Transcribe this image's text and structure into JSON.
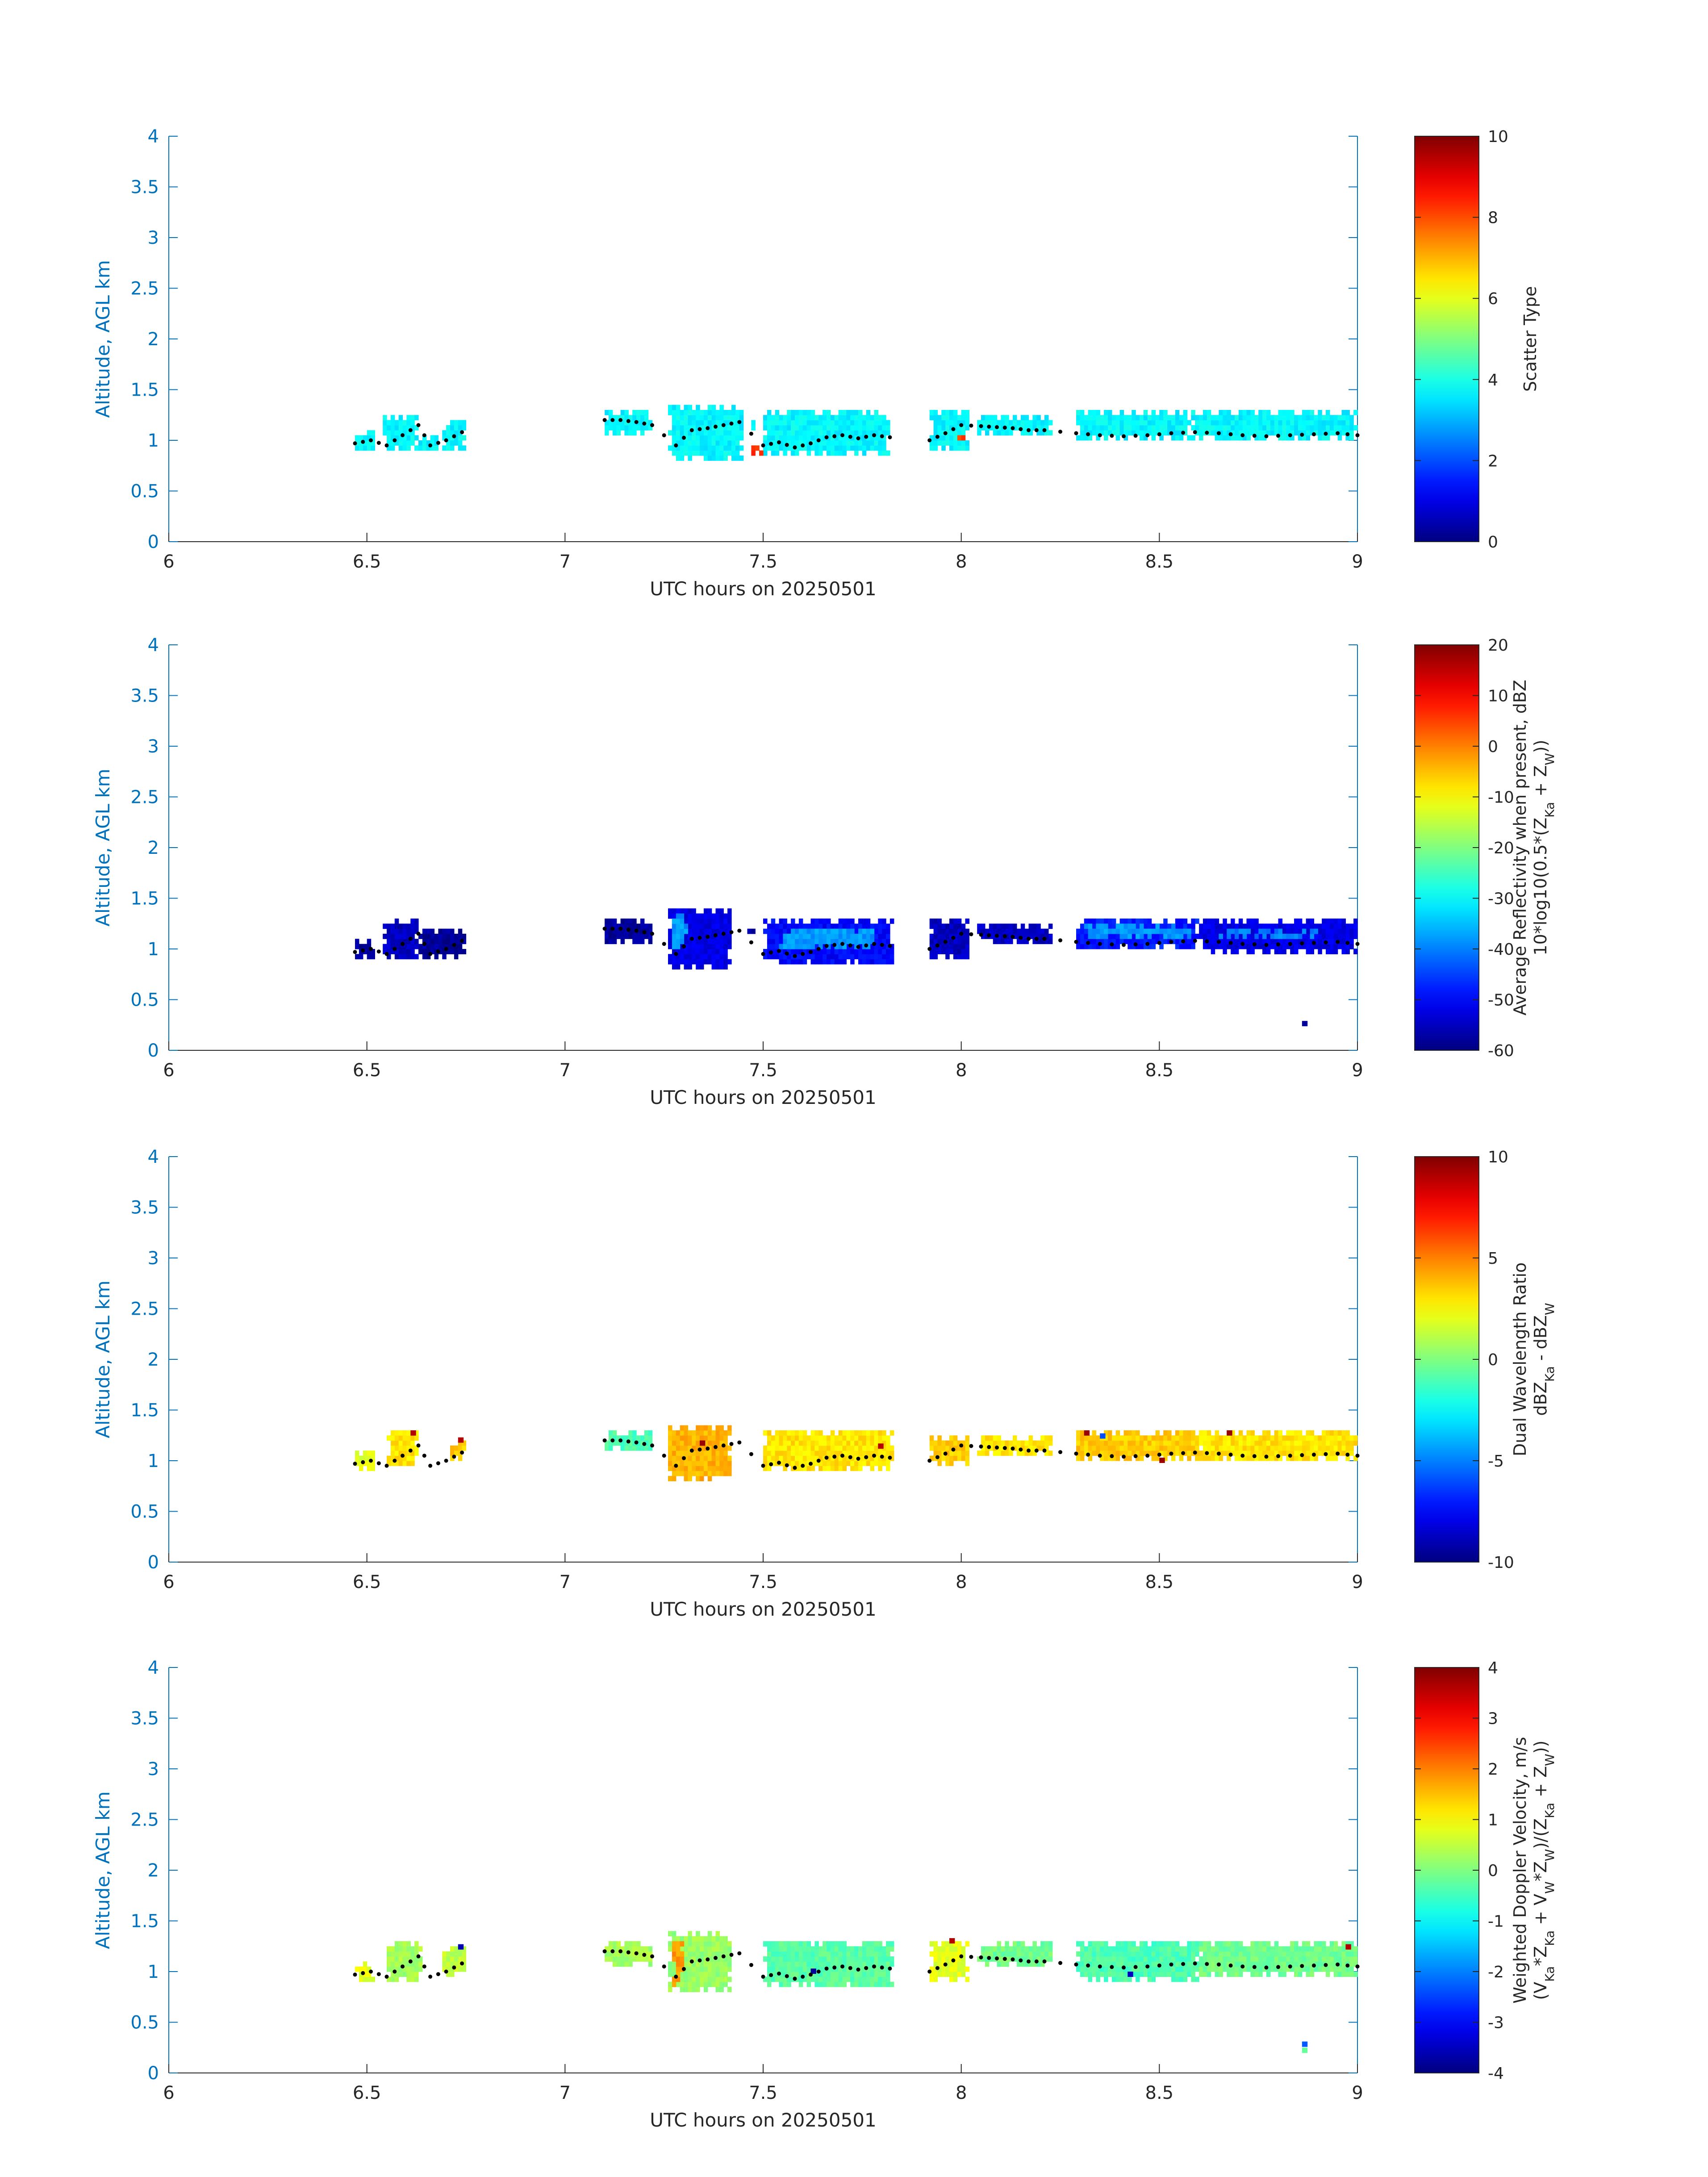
{
  "figure": {
    "date": "20250501"
  },
  "chart_data": [
    {
      "type": "heatmap",
      "xlabel": "UTC hours on 20250501",
      "ylabel": "Altitude, AGL km",
      "xlim": [
        6,
        9
      ],
      "ylim": [
        0,
        4
      ],
      "xticks": [
        "6",
        "6.5",
        "7",
        "7.5",
        "8",
        "8.5",
        "9"
      ],
      "yticks": [
        "0",
        "0.5",
        "1",
        "1.5",
        "2",
        "2.5",
        "3",
        "3.5",
        "4"
      ],
      "colorbar": {
        "label_lines": [
          "Scatter Type"
        ],
        "clim": [
          0,
          10
        ],
        "ticks": [
          "0",
          "2",
          "4",
          "6",
          "8",
          "10"
        ]
      },
      "colormap": "jet",
      "regions": [
        {
          "x": [
            6.47,
            6.52
          ],
          "y": [
            0.92,
            1.12
          ],
          "value": 3.7
        },
        {
          "x": [
            6.54,
            6.63
          ],
          "y": [
            0.92,
            1.25
          ],
          "value": 3.7
        },
        {
          "x": [
            6.63,
            6.68
          ],
          "y": [
            0.92,
            1.05
          ],
          "value": 3.7
        },
        {
          "x": [
            6.69,
            6.75
          ],
          "y": [
            0.92,
            1.2
          ],
          "value": 3.7
        },
        {
          "x": [
            7.1,
            7.22
          ],
          "y": [
            1.05,
            1.28
          ],
          "value": 3.7
        },
        {
          "x": [
            7.26,
            7.45
          ],
          "y": [
            0.82,
            1.35
          ],
          "value": 3.7
        },
        {
          "x": [
            7.46,
            7.48
          ],
          "y": [
            1.1,
            1.2
          ],
          "value": 3.7
        },
        {
          "x": [
            7.5,
            7.82
          ],
          "y": [
            0.85,
            1.28
          ],
          "value": 3.7
        },
        {
          "x": [
            7.47,
            7.5
          ],
          "y": [
            0.86,
            0.96
          ],
          "value": 8.2
        },
        {
          "x": [
            7.92,
            8.02
          ],
          "y": [
            0.92,
            1.28
          ],
          "value": 3.7
        },
        {
          "x": [
            7.99,
            8.01
          ],
          "y": [
            0.98,
            1.05
          ],
          "value": 8.2
        },
        {
          "x": [
            8.04,
            8.23
          ],
          "y": [
            1.05,
            1.25
          ],
          "value": 3.7
        },
        {
          "x": [
            8.29,
            8.58
          ],
          "y": [
            0.98,
            1.32
          ],
          "value": 3.7
        },
        {
          "x": [
            8.58,
            9.0
          ],
          "y": [
            0.98,
            1.3
          ],
          "value": 3.7
        }
      ],
      "speckles": [],
      "cloud_base": {
        "x": [
          6.47,
          6.51,
          6.55,
          6.59,
          6.63,
          6.66,
          6.7,
          6.74,
          7.1,
          7.14,
          7.18,
          7.22,
          7.28,
          7.32,
          7.36,
          7.4,
          7.44,
          7.5,
          7.54,
          7.58,
          7.62,
          7.66,
          7.7,
          7.74,
          7.78,
          7.82,
          7.92,
          7.96,
          8.0,
          8.05,
          8.09,
          8.13,
          8.17,
          8.21,
          8.29,
          8.35,
          8.41,
          8.47,
          8.53,
          8.59,
          8.65,
          8.71,
          8.77,
          8.83,
          8.89,
          8.95,
          9.0
        ],
        "y": [
          0.97,
          1.0,
          0.95,
          1.05,
          1.15,
          0.95,
          1.0,
          1.08,
          1.2,
          1.2,
          1.18,
          1.15,
          0.95,
          1.1,
          1.12,
          1.15,
          1.18,
          0.95,
          0.98,
          0.93,
          0.97,
          1.03,
          1.05,
          1.02,
          1.05,
          1.03,
          1.0,
          1.07,
          1.15,
          1.14,
          1.13,
          1.12,
          1.1,
          1.1,
          1.07,
          1.05,
          1.04,
          1.05,
          1.07,
          1.08,
          1.07,
          1.05,
          1.04,
          1.05,
          1.06,
          1.07,
          1.05
        ]
      }
    },
    {
      "type": "heatmap",
      "xlabel": "UTC hours on 20250501",
      "ylabel": "Altitude, AGL km",
      "xlim": [
        6,
        9
      ],
      "ylim": [
        0,
        4
      ],
      "xticks": [
        "6",
        "6.5",
        "7",
        "7.5",
        "8",
        "8.5",
        "9"
      ],
      "yticks": [
        "0",
        "0.5",
        "1",
        "1.5",
        "2",
        "2.5",
        "3",
        "3.5",
        "4"
      ],
      "colorbar": {
        "label_lines": [
          "Average Reflectivity when present, dBZ",
          "10*log10(0.5*(ZKa + ZW))"
        ],
        "clim": [
          -60,
          20
        ],
        "ticks": [
          "-60",
          "-50",
          "-40",
          "-30",
          "-20",
          "-10",
          "0",
          "10",
          "20"
        ]
      },
      "colormap": "jet",
      "regions": [
        {
          "x": [
            6.47,
            6.52
          ],
          "y": [
            0.92,
            1.12
          ],
          "value": -58
        },
        {
          "x": [
            6.54,
            6.63
          ],
          "y": [
            0.88,
            1.28
          ],
          "value": -55
        },
        {
          "x": [
            6.63,
            6.75
          ],
          "y": [
            0.92,
            1.22
          ],
          "value": -58
        },
        {
          "x": [
            7.1,
            7.22
          ],
          "y": [
            1.05,
            1.28
          ],
          "value": -58
        },
        {
          "x": [
            7.26,
            7.42
          ],
          "y": [
            0.82,
            1.4
          ],
          "value": -52
        },
        {
          "x": [
            7.27,
            7.31
          ],
          "y": [
            1.0,
            1.35
          ],
          "value": -38
        },
        {
          "x": [
            7.46,
            7.48
          ],
          "y": [
            1.15,
            1.22
          ],
          "value": -58
        },
        {
          "x": [
            7.5,
            7.83
          ],
          "y": [
            0.85,
            1.28
          ],
          "value": -50
        },
        {
          "x": [
            7.54,
            7.78
          ],
          "y": [
            0.98,
            1.22
          ],
          "value": -38
        },
        {
          "x": [
            7.92,
            8.02
          ],
          "y": [
            0.92,
            1.28
          ],
          "value": -55
        },
        {
          "x": [
            8.04,
            8.23
          ],
          "y": [
            1.05,
            1.25
          ],
          "value": -55
        },
        {
          "x": [
            8.29,
            8.6
          ],
          "y": [
            0.98,
            1.3
          ],
          "value": -48
        },
        {
          "x": [
            8.31,
            8.58
          ],
          "y": [
            1.1,
            1.25
          ],
          "value": -38
        },
        {
          "x": [
            8.6,
            9.0
          ],
          "y": [
            0.95,
            1.28
          ],
          "value": -52
        },
        {
          "x": [
            8.65,
            8.9
          ],
          "y": [
            1.08,
            1.22
          ],
          "value": -40
        }
      ],
      "speckles": [
        {
          "x": 8.86,
          "y": 0.24,
          "value": -58
        }
      ],
      "cloud_base": {
        "x": [
          6.47,
          6.51,
          6.55,
          6.59,
          6.63,
          6.66,
          6.7,
          6.74,
          7.1,
          7.14,
          7.18,
          7.22,
          7.28,
          7.32,
          7.36,
          7.4,
          7.44,
          7.5,
          7.54,
          7.58,
          7.62,
          7.66,
          7.7,
          7.74,
          7.78,
          7.82,
          7.92,
          7.96,
          8.0,
          8.05,
          8.09,
          8.13,
          8.17,
          8.21,
          8.29,
          8.35,
          8.41,
          8.47,
          8.53,
          8.59,
          8.65,
          8.71,
          8.77,
          8.83,
          8.89,
          8.95,
          9.0
        ],
        "y": [
          0.97,
          1.0,
          0.95,
          1.05,
          1.15,
          0.95,
          1.0,
          1.08,
          1.2,
          1.2,
          1.18,
          1.15,
          0.95,
          1.1,
          1.12,
          1.15,
          1.18,
          0.95,
          0.98,
          0.93,
          0.97,
          1.03,
          1.05,
          1.02,
          1.05,
          1.03,
          1.0,
          1.07,
          1.15,
          1.14,
          1.13,
          1.12,
          1.1,
          1.1,
          1.07,
          1.05,
          1.04,
          1.05,
          1.07,
          1.08,
          1.07,
          1.05,
          1.04,
          1.05,
          1.06,
          1.07,
          1.05
        ]
      }
    },
    {
      "type": "heatmap",
      "xlabel": "UTC hours on 20250501",
      "ylabel": "Altitude, AGL km",
      "xlim": [
        6,
        9
      ],
      "ylim": [
        0,
        4
      ],
      "xticks": [
        "6",
        "6.5",
        "7",
        "7.5",
        "8",
        "8.5",
        "9"
      ],
      "yticks": [
        "0",
        "0.5",
        "1",
        "1.5",
        "2",
        "2.5",
        "3",
        "3.5",
        "4"
      ],
      "colorbar": {
        "label_lines": [
          "Dual Wavelength Ratio",
          "dBZKa - dBZW"
        ],
        "clim": [
          -10,
          10
        ],
        "ticks": [
          "-10",
          "-5",
          "0",
          "5",
          "10"
        ]
      },
      "colormap": "jet",
      "regions": [
        {
          "x": [
            6.47,
            6.52
          ],
          "y": [
            0.92,
            1.1
          ],
          "value": 2.0
        },
        {
          "x": [
            6.55,
            6.63
          ],
          "y": [
            0.95,
            1.28
          ],
          "value": 3.0
        },
        {
          "x": [
            6.71,
            6.75
          ],
          "y": [
            0.98,
            1.22
          ],
          "value": 3.5
        },
        {
          "x": [
            7.1,
            7.22
          ],
          "y": [
            1.1,
            1.28
          ],
          "value": -1.0
        },
        {
          "x": [
            7.26,
            7.42
          ],
          "y": [
            0.82,
            1.35
          ],
          "value": 4.0
        },
        {
          "x": [
            7.5,
            7.83
          ],
          "y": [
            0.88,
            1.28
          ],
          "value": 3.0
        },
        {
          "x": [
            7.92,
            8.02
          ],
          "y": [
            0.95,
            1.25
          ],
          "value": 3.5
        },
        {
          "x": [
            8.04,
            8.23
          ],
          "y": [
            1.05,
            1.25
          ],
          "value": 3.0
        },
        {
          "x": [
            8.29,
            8.6
          ],
          "y": [
            0.98,
            1.32
          ],
          "value": 3.5
        },
        {
          "x": [
            8.6,
            9.0
          ],
          "y": [
            0.98,
            1.28
          ],
          "value": 3.0
        }
      ],
      "speckles": [
        {
          "x": 6.61,
          "y": 1.25,
          "value": 9.0
        },
        {
          "x": 6.73,
          "y": 1.18,
          "value": 9.0
        },
        {
          "x": 7.34,
          "y": 1.15,
          "value": 9.5
        },
        {
          "x": 7.79,
          "y": 1.12,
          "value": 9.0
        },
        {
          "x": 8.31,
          "y": 1.25,
          "value": 9.5
        },
        {
          "x": 8.67,
          "y": 1.25,
          "value": 9.5
        },
        {
          "x": 8.35,
          "y": 1.22,
          "value": -6.0
        },
        {
          "x": 8.5,
          "y": 0.98,
          "value": 9.5
        }
      ],
      "cloud_base": {
        "x": [
          6.47,
          6.51,
          6.55,
          6.59,
          6.63,
          6.66,
          6.7,
          6.74,
          7.1,
          7.14,
          7.18,
          7.22,
          7.28,
          7.32,
          7.36,
          7.4,
          7.44,
          7.5,
          7.54,
          7.58,
          7.62,
          7.66,
          7.7,
          7.74,
          7.78,
          7.82,
          7.92,
          7.96,
          8.0,
          8.05,
          8.09,
          8.13,
          8.17,
          8.21,
          8.29,
          8.35,
          8.41,
          8.47,
          8.53,
          8.59,
          8.65,
          8.71,
          8.77,
          8.83,
          8.89,
          8.95,
          9.0
        ],
        "y": [
          0.97,
          1.0,
          0.95,
          1.05,
          1.15,
          0.95,
          1.0,
          1.08,
          1.2,
          1.2,
          1.18,
          1.15,
          0.95,
          1.1,
          1.12,
          1.15,
          1.18,
          0.95,
          0.98,
          0.93,
          0.97,
          1.03,
          1.05,
          1.02,
          1.05,
          1.03,
          1.0,
          1.07,
          1.15,
          1.14,
          1.13,
          1.12,
          1.1,
          1.1,
          1.07,
          1.05,
          1.04,
          1.05,
          1.07,
          1.08,
          1.07,
          1.05,
          1.04,
          1.05,
          1.06,
          1.07,
          1.05
        ]
      }
    },
    {
      "type": "heatmap",
      "xlabel": "UTC hours on 20250501",
      "ylabel": "Altitude, AGL km",
      "xlim": [
        6,
        9
      ],
      "ylim": [
        0,
        4
      ],
      "xticks": [
        "6",
        "6.5",
        "7",
        "7.5",
        "8",
        "8.5",
        "9"
      ],
      "yticks": [
        "0",
        "0.5",
        "1",
        "1.5",
        "2",
        "2.5",
        "3",
        "3.5",
        "4"
      ],
      "colorbar": {
        "label_lines": [
          "Weighted Doppler Velocity, m/s",
          "(VKa*ZKa + VW*ZW)/(ZKa + ZW))"
        ],
        "clim": [
          -4,
          4
        ],
        "ticks": [
          "-4",
          "-3",
          "-2",
          "-1",
          "0",
          "1",
          "2",
          "3",
          "4"
        ]
      },
      "colormap": "jet",
      "regions": [
        {
          "x": [
            6.47,
            6.52
          ],
          "y": [
            0.92,
            1.12
          ],
          "value": 0.8
        },
        {
          "x": [
            6.55,
            6.64
          ],
          "y": [
            0.9,
            1.28
          ],
          "value": 0.3
        },
        {
          "x": [
            6.69,
            6.75
          ],
          "y": [
            0.95,
            1.25
          ],
          "value": 0.5
        },
        {
          "x": [
            7.1,
            7.22
          ],
          "y": [
            1.05,
            1.28
          ],
          "value": 0.3
        },
        {
          "x": [
            7.26,
            7.42
          ],
          "y": [
            0.82,
            1.38
          ],
          "value": 0.2
        },
        {
          "x": [
            7.27,
            7.3
          ],
          "y": [
            0.85,
            1.3
          ],
          "value": 1.8
        },
        {
          "x": [
            7.5,
            7.83
          ],
          "y": [
            0.85,
            1.3
          ],
          "value": -0.3
        },
        {
          "x": [
            7.92,
            8.02
          ],
          "y": [
            0.92,
            1.28
          ],
          "value": 0.8
        },
        {
          "x": [
            8.04,
            8.23
          ],
          "y": [
            1.05,
            1.3
          ],
          "value": -0.1
        },
        {
          "x": [
            8.29,
            8.6
          ],
          "y": [
            0.92,
            1.3
          ],
          "value": -0.4
        },
        {
          "x": [
            8.6,
            9.0
          ],
          "y": [
            0.95,
            1.3
          ],
          "value": -0.1
        }
      ],
      "speckles": [
        {
          "x": 8.86,
          "y": 0.26,
          "value": -2.3
        },
        {
          "x": 8.86,
          "y": 0.2,
          "value": -0.2
        },
        {
          "x": 6.73,
          "y": 1.22,
          "value": -3.6
        },
        {
          "x": 7.62,
          "y": 0.98,
          "value": -3.8
        },
        {
          "x": 7.97,
          "y": 1.28,
          "value": 3.6
        },
        {
          "x": 8.97,
          "y": 1.22,
          "value": 3.6
        },
        {
          "x": 8.42,
          "y": 0.95,
          "value": -3.5
        }
      ],
      "cloud_base": {
        "x": [
          6.47,
          6.51,
          6.55,
          6.59,
          6.63,
          6.66,
          6.7,
          6.74,
          7.1,
          7.14,
          7.18,
          7.22,
          7.28,
          7.32,
          7.36,
          7.4,
          7.44,
          7.5,
          7.54,
          7.58,
          7.62,
          7.66,
          7.7,
          7.74,
          7.78,
          7.82,
          7.92,
          7.96,
          8.0,
          8.05,
          8.09,
          8.13,
          8.17,
          8.21,
          8.29,
          8.35,
          8.41,
          8.47,
          8.53,
          8.59,
          8.65,
          8.71,
          8.77,
          8.83,
          8.89,
          8.95,
          9.0
        ],
        "y": [
          0.97,
          1.0,
          0.95,
          1.05,
          1.15,
          0.95,
          1.0,
          1.08,
          1.2,
          1.2,
          1.18,
          1.15,
          0.95,
          1.1,
          1.12,
          1.15,
          1.18,
          0.95,
          0.98,
          0.93,
          0.97,
          1.03,
          1.05,
          1.02,
          1.05,
          1.03,
          1.0,
          1.07,
          1.15,
          1.14,
          1.13,
          1.12,
          1.1,
          1.1,
          1.07,
          1.05,
          1.04,
          1.05,
          1.07,
          1.08,
          1.07,
          1.05,
          1.04,
          1.05,
          1.06,
          1.07,
          1.05
        ]
      }
    }
  ]
}
